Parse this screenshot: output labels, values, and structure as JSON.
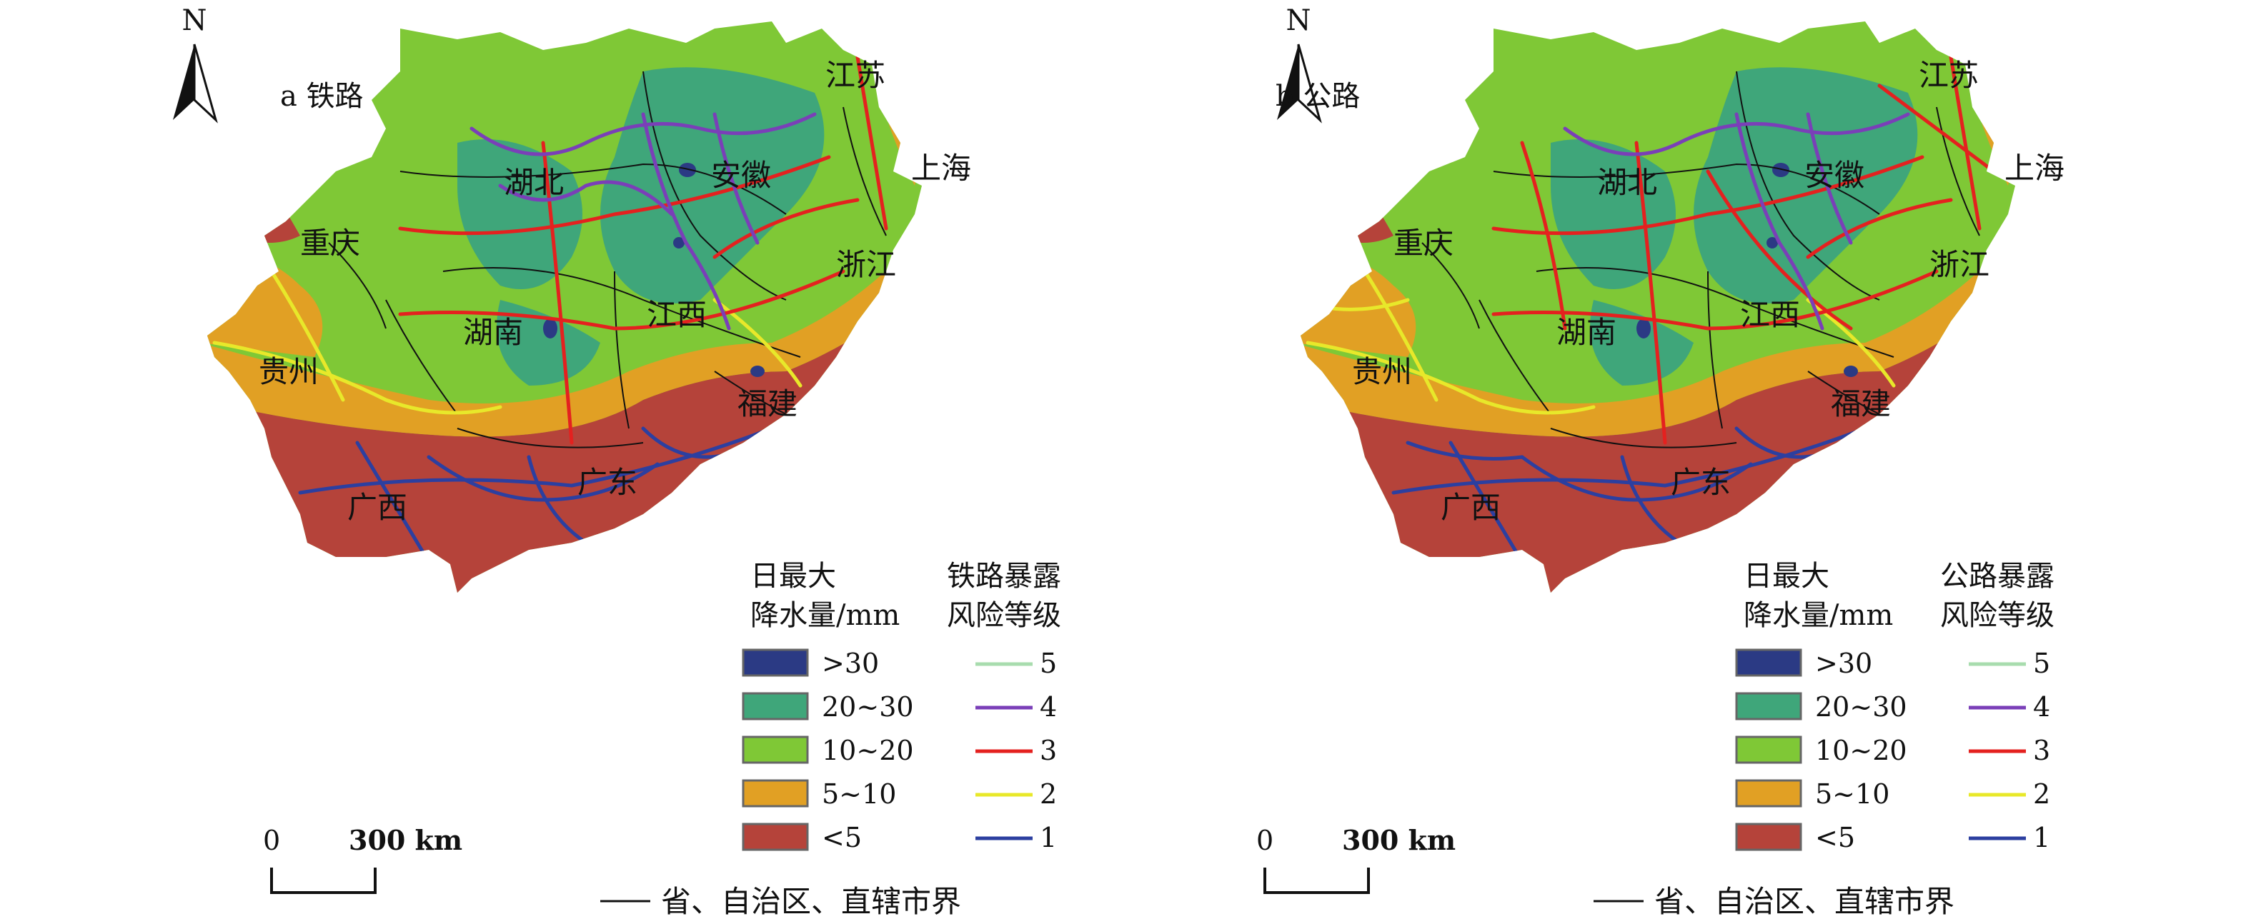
{
  "north_label": "N",
  "scale": {
    "zero": "0",
    "distance": "300 km"
  },
  "boundary_note": "省、自治区、直辖市界",
  "precip_legend": {
    "heading_line1": "日最大",
    "heading_line2": "降水量/mm",
    "classes": [
      {
        "label": ">30",
        "color": "#2b3a84"
      },
      {
        "label": "20~30",
        "color": "#3fa67a"
      },
      {
        "label": "10~20",
        "color": "#7fc836"
      },
      {
        "label": "5~10",
        "color": "#e1a024"
      },
      {
        "label": "<5",
        "color": "#b5433a"
      }
    ]
  },
  "risk_levels": [
    {
      "label": "5",
      "color": "#a8dcae"
    },
    {
      "label": "4",
      "color": "#7a3fb8"
    },
    {
      "label": "3",
      "color": "#e4211f"
    },
    {
      "label": "2",
      "color": "#e8e82a"
    },
    {
      "label": "1",
      "color": "#2c3fa0"
    }
  ],
  "panels": [
    {
      "title": "a 铁路",
      "risk_heading_line1": "铁路暴露",
      "risk_heading_line2": "风险等级"
    },
    {
      "title": "b 公路",
      "risk_heading_line1": "公路暴露",
      "risk_heading_line2": "风险等级"
    }
  ],
  "provinces": {
    "jiangsu": "江苏",
    "anhui": "安徽",
    "shanghai": "上海",
    "hubei": "湖北",
    "chongqing": "重庆",
    "zhejiang": "浙江",
    "hunan": "湖南",
    "jiangxi": "江西",
    "guizhou": "贵州",
    "fujian": "福建",
    "guangxi": "广西",
    "guangdong": "广东"
  }
}
